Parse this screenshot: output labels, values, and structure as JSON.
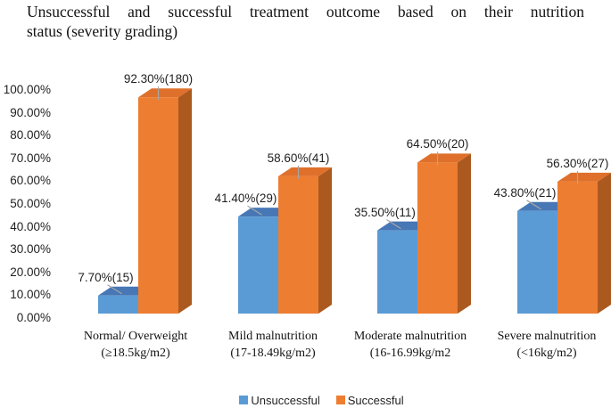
{
  "title": {
    "text": "Unsuccessful and successful treatment outcome based on their nutrition status (severity grading)",
    "line1": "Unsuccessful and successful treatment outcome based on their nutrition",
    "line2": "status (severity grading)"
  },
  "chart_data": {
    "type": "bar",
    "style": "3d-clustered-column",
    "title": "Unsuccessful and successful treatment outcome based on their nutrition status (severity grading)",
    "categories": [
      "Normal/ Overweight (≥18.5kg/m2)",
      "Mild malnutrition (17-18.49kg/m2)",
      "Moderate malnutrition (16-16.99kg/m2",
      "Severe malnutrition (<16kg/m2)"
    ],
    "category_lines": [
      [
        "Normal/ Overweight",
        "(≥18.5kg/m2)"
      ],
      [
        "Mild malnutrition",
        "(17-18.49kg/m2)"
      ],
      [
        "Moderate malnutrition",
        "(16-16.99kg/m2"
      ],
      [
        "Severe malnutrition",
        "(<16kg/m2)"
      ]
    ],
    "series": [
      {
        "name": "Unsuccessful",
        "values": [
          7.7,
          41.4,
          35.5,
          43.8
        ],
        "counts": [
          15,
          29,
          11,
          21
        ],
        "data_labels": [
          "7.70%(15)",
          "41.40%(29)",
          "35.50%(11)",
          "43.80%(21)"
        ],
        "color": "#5B9BD5",
        "color_top": "#4777B5",
        "color_side": "#3E6CA6"
      },
      {
        "name": "Successful",
        "values": [
          92.3,
          58.6,
          64.5,
          56.3
        ],
        "counts": [
          180,
          41,
          20,
          27
        ],
        "data_labels": [
          "92.30%(180)",
          "58.60%(41)",
          "64.50%(20)",
          "56.30%(27)"
        ],
        "color": "#ED7D31",
        "color_top": "#DF702B",
        "color_side": "#AC591F"
      }
    ],
    "y_axis": {
      "min": 0,
      "max": 100,
      "step": 10,
      "tick_labels": [
        "0.00%",
        "10.00%",
        "20.00%",
        "30.00%",
        "40.00%",
        "50.00%",
        "60.00%",
        "70.00%",
        "80.00%",
        "90.00%",
        "100.00%"
      ],
      "format": "percent"
    },
    "legend": {
      "position": "bottom",
      "items": [
        "Unsuccessful",
        "Successful"
      ]
    },
    "gridlines": false,
    "leader_line_color": "#A6A6A6",
    "background": "#FFFFFF"
  }
}
